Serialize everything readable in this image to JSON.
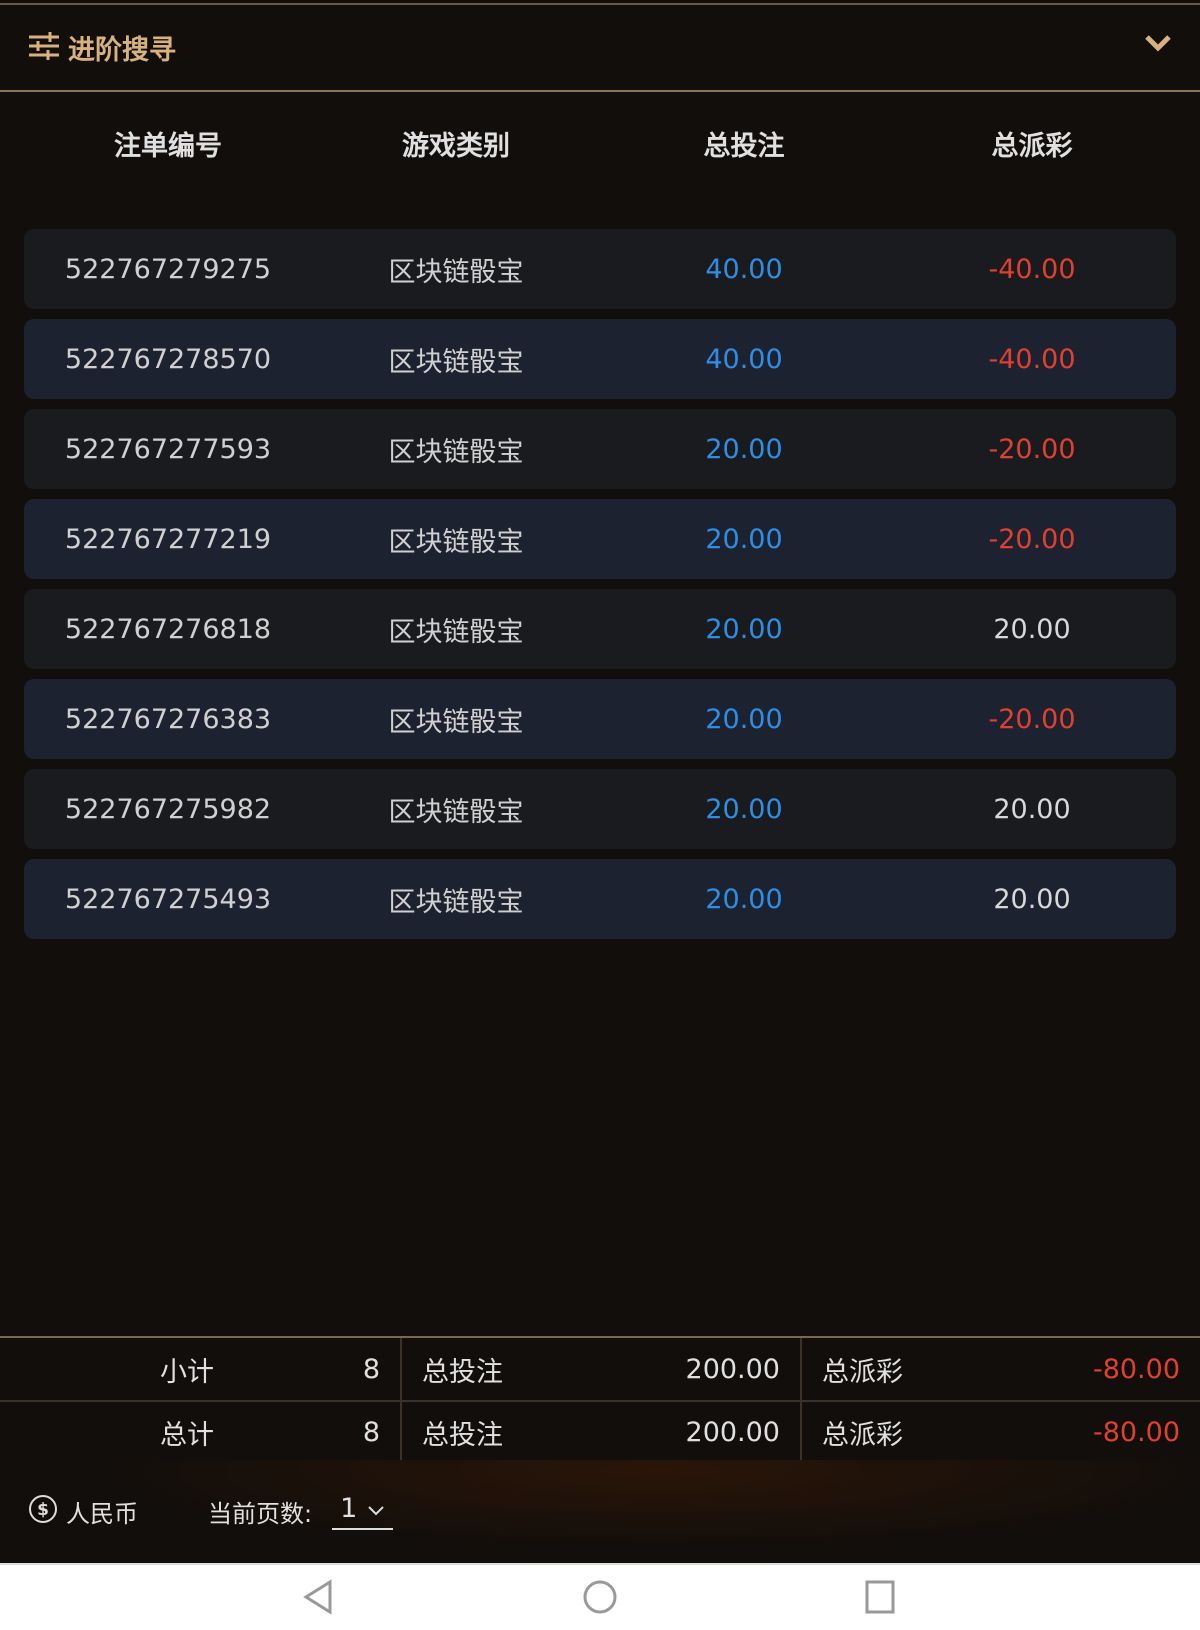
{
  "advanced_search": {
    "title": "进阶搜寻",
    "icon": "sliders-icon",
    "toggle_icon": "chevron-down-icon"
  },
  "table": {
    "headers": [
      "注单编号",
      "游戏类别",
      "总投注",
      "总派彩"
    ],
    "rows": [
      {
        "id": "522767279275",
        "game": "区块链骰宝",
        "bet": "40.00",
        "payout": "-40.00",
        "negative": true
      },
      {
        "id": "522767278570",
        "game": "区块链骰宝",
        "bet": "40.00",
        "payout": "-40.00",
        "negative": true
      },
      {
        "id": "522767277593",
        "game": "区块链骰宝",
        "bet": "20.00",
        "payout": "-20.00",
        "negative": true
      },
      {
        "id": "522767277219",
        "game": "区块链骰宝",
        "bet": "20.00",
        "payout": "-20.00",
        "negative": true
      },
      {
        "id": "522767276818",
        "game": "区块链骰宝",
        "bet": "20.00",
        "payout": "20.00",
        "negative": false
      },
      {
        "id": "522767276383",
        "game": "区块链骰宝",
        "bet": "20.00",
        "payout": "-20.00",
        "negative": true
      },
      {
        "id": "522767275982",
        "game": "区块链骰宝",
        "bet": "20.00",
        "payout": "20.00",
        "negative": false
      },
      {
        "id": "522767275493",
        "game": "区块链骰宝",
        "bet": "20.00",
        "payout": "20.00",
        "negative": false
      }
    ]
  },
  "summary": [
    {
      "label": "小计",
      "count": "8",
      "bet_label": "总投注",
      "bet": "200.00",
      "payout_label": "总派彩",
      "payout": "-80.00"
    },
    {
      "label": "总计",
      "count": "8",
      "bet_label": "总投注",
      "bet": "200.00",
      "payout_label": "总派彩",
      "payout": "-80.00"
    }
  ],
  "footer": {
    "currency": "人民币",
    "currency_icon": "dollar-circle-icon",
    "page_label": "当前页数:",
    "page": "1"
  },
  "colors": {
    "accent": "#d7b27e",
    "bet": "#2e8ee6",
    "negative": "#e0402f"
  }
}
